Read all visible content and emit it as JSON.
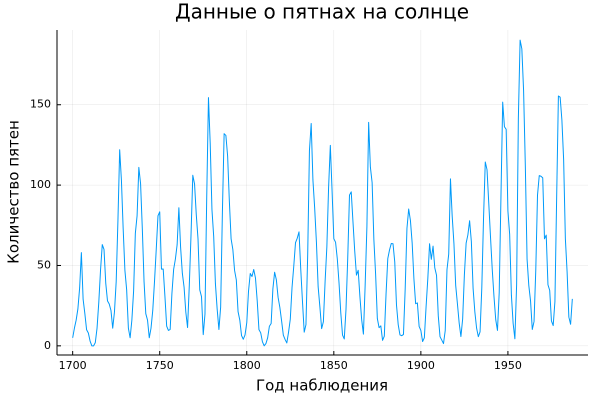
{
  "chart_data": {
    "type": "line",
    "title": "Данные о пятнах на солнце",
    "xlabel": "Год наблюдения",
    "ylabel": "Количество пятен",
    "x": [
      1700,
      1701,
      1702,
      1703,
      1704,
      1705,
      1706,
      1707,
      1708,
      1709,
      1710,
      1711,
      1712,
      1713,
      1714,
      1715,
      1716,
      1717,
      1718,
      1719,
      1720,
      1721,
      1722,
      1723,
      1724,
      1725,
      1726,
      1727,
      1728,
      1729,
      1730,
      1731,
      1732,
      1733,
      1734,
      1735,
      1736,
      1737,
      1738,
      1739,
      1740,
      1741,
      1742,
      1743,
      1744,
      1745,
      1746,
      1747,
      1748,
      1749,
      1750,
      1751,
      1752,
      1753,
      1754,
      1755,
      1756,
      1757,
      1758,
      1759,
      1760,
      1761,
      1762,
      1763,
      1764,
      1765,
      1766,
      1767,
      1768,
      1769,
      1770,
      1771,
      1772,
      1773,
      1774,
      1775,
      1776,
      1777,
      1778,
      1779,
      1780,
      1781,
      1782,
      1783,
      1784,
      1785,
      1786,
      1787,
      1788,
      1789,
      1790,
      1791,
      1792,
      1793,
      1794,
      1795,
      1796,
      1797,
      1798,
      1799,
      1800,
      1801,
      1802,
      1803,
      1804,
      1805,
      1806,
      1807,
      1808,
      1809,
      1810,
      1811,
      1812,
      1813,
      1814,
      1815,
      1816,
      1817,
      1818,
      1819,
      1820,
      1821,
      1822,
      1823,
      1824,
      1825,
      1826,
      1827,
      1828,
      1829,
      1830,
      1831,
      1832,
      1833,
      1834,
      1835,
      1836,
      1837,
      1838,
      1839,
      1840,
      1841,
      1842,
      1843,
      1844,
      1845,
      1846,
      1847,
      1848,
      1849,
      1850,
      1851,
      1852,
      1853,
      1854,
      1855,
      1856,
      1857,
      1858,
      1859,
      1860,
      1861,
      1862,
      1863,
      1864,
      1865,
      1866,
      1867,
      1868,
      1869,
      1870,
      1871,
      1872,
      1873,
      1874,
      1875,
      1876,
      1877,
      1878,
      1879,
      1880,
      1881,
      1882,
      1883,
      1884,
      1885,
      1886,
      1887,
      1888,
      1889,
      1890,
      1891,
      1892,
      1893,
      1894,
      1895,
      1896,
      1897,
      1898,
      1899,
      1900,
      1901,
      1902,
      1903,
      1904,
      1905,
      1906,
      1907,
      1908,
      1909,
      1910,
      1911,
      1912,
      1913,
      1914,
      1915,
      1916,
      1917,
      1918,
      1919,
      1920,
      1921,
      1922,
      1923,
      1924,
      1925,
      1926,
      1927,
      1928,
      1929,
      1930,
      1931,
      1932,
      1933,
      1934,
      1935,
      1936,
      1937,
      1938,
      1939,
      1940,
      1941,
      1942,
      1943,
      1944,
      1945,
      1946,
      1947,
      1948,
      1949,
      1950,
      1951,
      1952,
      1953,
      1954,
      1955,
      1956,
      1957,
      1958,
      1959,
      1960,
      1961,
      1962,
      1963,
      1964,
      1965,
      1966,
      1967,
      1968,
      1969,
      1970,
      1971,
      1972,
      1973,
      1974,
      1975,
      1976,
      1977,
      1978,
      1979,
      1980,
      1981,
      1982,
      1983,
      1984,
      1985,
      1986,
      1987
    ],
    "series": [
      {
        "color": "#009af9",
        "values": [
          5,
          11,
          16,
          23,
          36,
          58,
          29,
          20,
          10,
          8,
          3,
          0,
          0,
          2,
          11,
          27,
          47,
          63,
          60,
          39,
          28,
          26,
          22,
          11,
          21,
          40,
          78,
          122,
          103,
          73,
          47,
          35,
          11,
          5,
          16,
          34,
          70,
          81,
          111,
          101,
          73,
          40,
          20,
          16,
          5,
          11,
          22,
          40,
          60,
          80.9,
          83.4,
          47.7,
          47.8,
          30.7,
          12.2,
          9.6,
          10.2,
          32.4,
          47.6,
          54,
          62.9,
          85.9,
          61.2,
          45.1,
          36.4,
          20.9,
          11.4,
          37.8,
          69.8,
          106.1,
          100.8,
          81.6,
          66.5,
          34.8,
          30.6,
          7,
          19.8,
          92.5,
          154.4,
          125.9,
          84.8,
          68.1,
          38.5,
          22.8,
          10.2,
          24.1,
          82.9,
          132,
          130.9,
          118.1,
          89.9,
          66.6,
          60,
          46.9,
          41,
          21.3,
          16,
          6.4,
          4.1,
          6.8,
          14.5,
          34,
          45,
          43.1,
          47.5,
          42.2,
          28.1,
          10.1,
          8.1,
          2.5,
          0,
          1.4,
          5,
          12.2,
          13.9,
          35.4,
          45.8,
          41.1,
          30.1,
          23.9,
          15.6,
          6.6,
          4,
          1.8,
          8.5,
          16.6,
          36.3,
          49.6,
          64.2,
          67,
          70.9,
          47.8,
          27.5,
          8.5,
          13.2,
          56.9,
          121.5,
          138.3,
          103.2,
          85.7,
          64.6,
          36.7,
          24.2,
          10.7,
          15,
          40.1,
          61.5,
          98.5,
          124.7,
          96.3,
          66.6,
          64.5,
          54.1,
          39,
          20.6,
          6.7,
          4.3,
          22.7,
          54.8,
          93.8,
          95.8,
          77.2,
          59.1,
          44,
          47,
          30.5,
          16.3,
          7.3,
          37.6,
          74,
          139,
          111.2,
          101.6,
          66.2,
          44.7,
          17,
          11.3,
          12.4,
          3.4,
          6,
          32.3,
          54.3,
          59.7,
          63.7,
          63.5,
          52.2,
          25.4,
          13.1,
          6.8,
          6.3,
          7.1,
          35.6,
          73,
          85.1,
          78,
          64,
          41.8,
          26.2,
          26.7,
          12.1,
          9.5,
          2.7,
          5,
          24.4,
          42,
          63.5,
          53.8,
          62,
          48.5,
          43.9,
          18.6,
          5.7,
          3.6,
          1.4,
          9.6,
          47.4,
          57.1,
          103.9,
          80.6,
          63.6,
          37.6,
          26.1,
          14.2,
          5.8,
          16.7,
          44.3,
          63.9,
          69,
          77.8,
          64.9,
          35.7,
          21.2,
          11.1,
          5.7,
          8.7,
          36.1,
          79.7,
          114.4,
          109.6,
          88.8,
          67.8,
          47.5,
          30.6,
          16.3,
          9.6,
          33.2,
          92.6,
          151.6,
          136.3,
          134.7,
          83.9,
          69.4,
          31.5,
          13.9,
          4.4,
          38,
          141.7,
          190.2,
          184.8,
          159,
          112.3,
          53.9,
          37.5,
          27.9,
          10.2,
          15.1,
          47,
          93.8,
          105.9,
          105.5,
          104.5,
          66.6,
          68.9,
          38,
          34.5,
          15.5,
          12.6,
          27.5,
          92.5,
          155.4,
          154.7,
          140.5,
          115.9,
          66.6,
          45.9,
          17.9,
          13.4,
          29.2
        ]
      }
    ],
    "xlim": [
      1691,
      1996
    ],
    "xticks": [
      1700,
      1750,
      1800,
      1850,
      1900,
      1950
    ],
    "ylim": [
      -5.7,
      196.5
    ],
    "yticks": [
      0,
      50,
      100,
      150
    ],
    "grid": true
  }
}
